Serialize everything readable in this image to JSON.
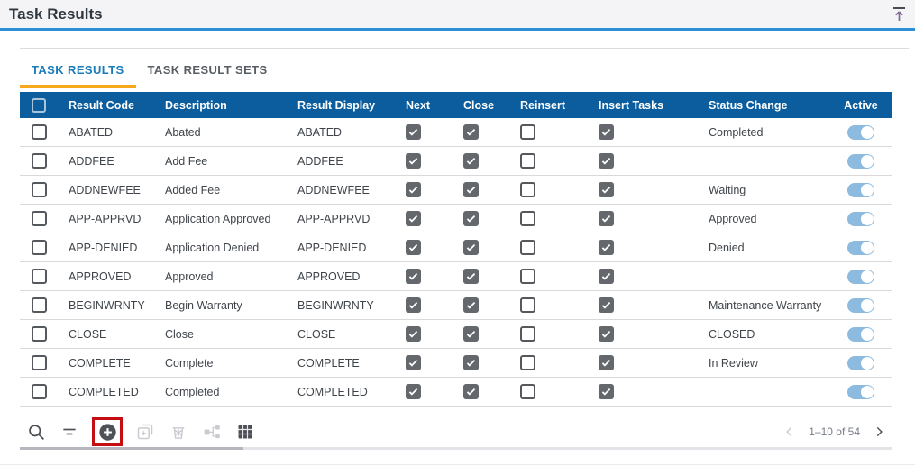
{
  "page": {
    "title": "Task Results"
  },
  "topbar": {
    "icon": "scroll-to-top-icon"
  },
  "tabs": [
    {
      "label": "TASK RESULTS",
      "active": true
    },
    {
      "label": "TASK RESULT SETS",
      "active": false
    }
  ],
  "table": {
    "columns": [
      "Result Code",
      "Description",
      "Result Display",
      "Next",
      "Close",
      "Reinsert",
      "Insert Tasks",
      "Status Change",
      "Active"
    ],
    "rows": [
      {
        "result_code": "ABATED",
        "description": "Abated",
        "result_display": "ABATED",
        "next": true,
        "close": true,
        "reinsert": false,
        "insert_tasks": true,
        "status_change": "Completed",
        "active": true
      },
      {
        "result_code": "ADDFEE",
        "description": "Add Fee",
        "result_display": "ADDFEE",
        "next": true,
        "close": true,
        "reinsert": false,
        "insert_tasks": true,
        "status_change": "",
        "active": true
      },
      {
        "result_code": "ADDNEWFEE",
        "description": "Added Fee",
        "result_display": "ADDNEWFEE",
        "next": true,
        "close": true,
        "reinsert": false,
        "insert_tasks": true,
        "status_change": "Waiting",
        "active": true
      },
      {
        "result_code": "APP-APPRVD",
        "description": "Application Approved",
        "result_display": "APP-APPRVD",
        "next": true,
        "close": true,
        "reinsert": false,
        "insert_tasks": true,
        "status_change": "Approved",
        "active": true
      },
      {
        "result_code": "APP-DENIED",
        "description": "Application Denied",
        "result_display": "APP-DENIED",
        "next": true,
        "close": true,
        "reinsert": false,
        "insert_tasks": true,
        "status_change": "Denied",
        "active": true
      },
      {
        "result_code": "APPROVED",
        "description": "Approved",
        "result_display": "APPROVED",
        "next": true,
        "close": true,
        "reinsert": false,
        "insert_tasks": true,
        "status_change": "",
        "active": true
      },
      {
        "result_code": "BEGINWRNTY",
        "description": "Begin Warranty",
        "result_display": "BEGINWRNTY",
        "next": true,
        "close": true,
        "reinsert": false,
        "insert_tasks": true,
        "status_change": "Maintenance Warranty",
        "active": true
      },
      {
        "result_code": "CLOSE",
        "description": "Close",
        "result_display": "CLOSE",
        "next": true,
        "close": true,
        "reinsert": false,
        "insert_tasks": true,
        "status_change": "CLOSED",
        "active": true
      },
      {
        "result_code": "COMPLETE",
        "description": "Complete",
        "result_display": "COMPLETE",
        "next": true,
        "close": true,
        "reinsert": false,
        "insert_tasks": true,
        "status_change": "In Review",
        "active": true
      },
      {
        "result_code": "COMPLETED",
        "description": "Completed",
        "result_display": "COMPLETED",
        "next": true,
        "close": true,
        "reinsert": false,
        "insert_tasks": true,
        "status_change": "",
        "active": true
      }
    ]
  },
  "toolbar": {
    "icons": [
      {
        "name": "search-icon",
        "enabled": true
      },
      {
        "name": "filter-icon",
        "enabled": true
      },
      {
        "name": "add-icon",
        "enabled": true,
        "highlighted": true
      },
      {
        "name": "copy-icon",
        "enabled": false
      },
      {
        "name": "delete-icon",
        "enabled": false
      },
      {
        "name": "flow-icon",
        "enabled": false
      },
      {
        "name": "grid-settings-icon",
        "enabled": true
      }
    ],
    "highlight_color": "#c40e12"
  },
  "pagination": {
    "range_label": "1–10 of 54",
    "prev_enabled": false,
    "next_enabled": true
  },
  "colors": {
    "header_bar": "#0b5d9e",
    "accent_line": "#2e8fd9",
    "tab_active": "#1a7bb9",
    "tab_underline": "#f7a81b",
    "toggle_on": "#8dbadf",
    "checkbox_checked": "#64686c",
    "highlight": "#c40e12"
  }
}
